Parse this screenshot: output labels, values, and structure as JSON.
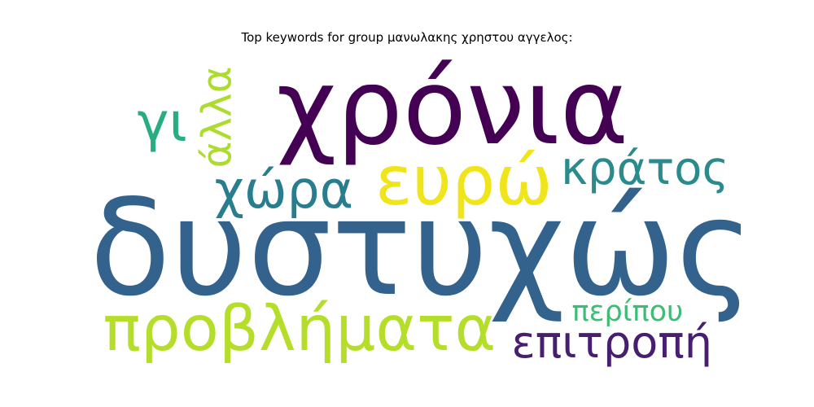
{
  "chart_data": {
    "type": "wordcloud",
    "title": "Top keywords for group μανωλακης χρηστου αγγελος:",
    "words": [
      {
        "text": "δυστυχώς",
        "weight": 1.0,
        "color": "#33638d",
        "orientation": "horizontal"
      },
      {
        "text": "χρόνια",
        "weight": 0.9,
        "color": "#440154",
        "orientation": "horizontal"
      },
      {
        "text": "ευρώ",
        "weight": 0.62,
        "color": "#f0e51a",
        "orientation": "horizontal"
      },
      {
        "text": "προβλήματα",
        "weight": 0.55,
        "color": "#b5de2b",
        "orientation": "horizontal"
      },
      {
        "text": "χώρα",
        "weight": 0.45,
        "color": "#287d8e",
        "orientation": "horizontal"
      },
      {
        "text": "κράτος",
        "weight": 0.4,
        "color": "#2a8a8c",
        "orientation": "horizontal"
      },
      {
        "text": "επιτροπή",
        "weight": 0.38,
        "color": "#481f70",
        "orientation": "horizontal"
      },
      {
        "text": "γι",
        "weight": 0.38,
        "color": "#27ad81",
        "orientation": "horizontal"
      },
      {
        "text": "άλλα",
        "weight": 0.33,
        "color": "#addc30",
        "orientation": "vertical"
      },
      {
        "text": "περίπου",
        "weight": 0.25,
        "color": "#3dbc74",
        "orientation": "horizontal"
      }
    ]
  }
}
